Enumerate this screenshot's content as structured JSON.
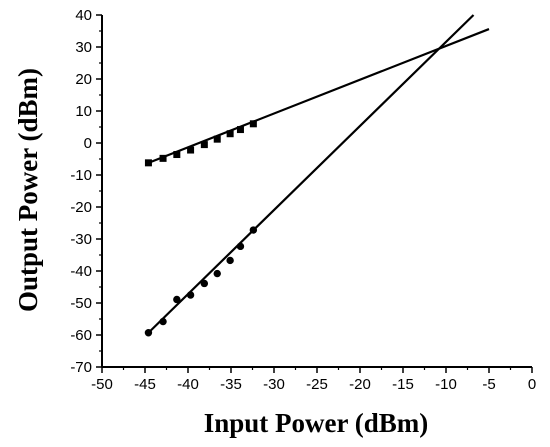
{
  "chart_data": {
    "type": "scatter",
    "xlabel": "Input Power (dBm)",
    "ylabel": "Output Power (dBm)",
    "xlim": [
      -50,
      0
    ],
    "ylim": [
      -70,
      40
    ],
    "xticks": [
      -50,
      -45,
      -40,
      -35,
      -30,
      -25,
      -20,
      -15,
      -10,
      -5,
      0
    ],
    "yticks": [
      -70,
      -60,
      -50,
      -40,
      -30,
      -20,
      -10,
      0,
      10,
      20,
      30,
      40
    ],
    "grid": false,
    "legend": "none",
    "series": [
      {
        "marker": "square",
        "color": "#000000",
        "x": [
          -44.6,
          -42.9,
          -41.3,
          -39.7,
          -38.1,
          -36.6,
          -35.1,
          -33.9,
          -32.4
        ],
        "y": [
          -6.2,
          -4.8,
          -3.6,
          -2.2,
          -0.5,
          1.2,
          2.9,
          4.2,
          6.0
        ],
        "fit": {
          "x": [
            -44.6,
            -5.0
          ],
          "y": [
            -6.2,
            35.6
          ]
        }
      },
      {
        "marker": "circle",
        "color": "#000000",
        "x": [
          -44.6,
          -42.9,
          -41.3,
          -39.7,
          -38.1,
          -36.6,
          -35.1,
          -33.9,
          -32.4
        ],
        "y": [
          -59.3,
          -55.8,
          -48.9,
          -47.5,
          -43.9,
          -40.8,
          -36.7,
          -32.3,
          -27.2
        ],
        "fit": {
          "x": [
            -44.6,
            -6.8
          ],
          "y": [
            -59.3,
            40.0
          ]
        }
      }
    ]
  }
}
